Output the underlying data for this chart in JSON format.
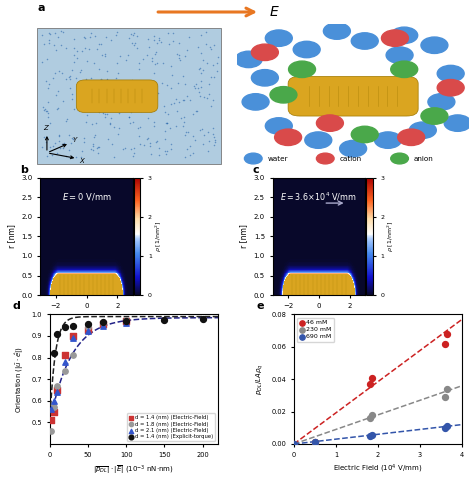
{
  "arrow_color": "#E87722",
  "water_color": "#4A90D9",
  "cation_color": "#D94A4A",
  "anion_color": "#4AA84A",
  "nanorod_color": "#DAA520",
  "nanorod_edge_color": "#A07800",
  "sim_bg_color": "#B0CCE0",
  "colorbar_max": 3.0,
  "colorbar_min": 0.0,
  "orient_d14_ef_x": [
    2,
    5,
    10,
    20,
    30,
    50,
    70,
    100
  ],
  "orient_d14_ef_y": [
    0.51,
    0.55,
    0.65,
    0.81,
    0.9,
    0.93,
    0.955,
    0.97
  ],
  "orient_d18_ef_x": [
    2,
    5,
    10,
    20,
    30,
    50,
    70,
    100
  ],
  "orient_d18_ef_y": [
    0.46,
    0.57,
    0.67,
    0.74,
    0.81,
    0.94,
    0.96,
    0.975
  ],
  "orient_d21_ef_x": [
    2,
    5,
    10,
    20,
    30,
    50,
    70,
    100
  ],
  "orient_d21_ef_y": [
    0.56,
    0.6,
    0.64,
    0.78,
    0.89,
    0.925,
    0.945,
    0.96
  ],
  "orient_d14_et_x": [
    5,
    10,
    20,
    30,
    50,
    70,
    100,
    150,
    200
  ],
  "orient_d14_et_y": [
    0.82,
    0.91,
    0.94,
    0.945,
    0.955,
    0.965,
    0.97,
    0.975,
    0.98
  ],
  "color_d14_ef": "#CC3333",
  "color_d18_ef": "#999999",
  "color_d21_ef": "#3355CC",
  "color_d14_et": "#111111",
  "color_46mM": "#CC2222",
  "color_230mM": "#888888",
  "color_690mM": "#3355AA",
  "pdl_46mM_x": [
    0.0,
    0.5,
    1.8,
    1.85,
    3.6,
    3.65
  ],
  "pdl_46mM_y": [
    0.0,
    0.001,
    0.037,
    0.041,
    0.062,
    0.068
  ],
  "pdl_230mM_x": [
    0.0,
    0.5,
    1.8,
    1.85,
    3.6,
    3.65
  ],
  "pdl_230mM_y": [
    0.0,
    0.001,
    0.016,
    0.018,
    0.029,
    0.034
  ],
  "pdl_690mM_x": [
    0.0,
    0.5,
    1.8,
    1.85,
    3.6,
    3.65
  ],
  "pdl_690mM_y": [
    0.0,
    0.001,
    0.005,
    0.0055,
    0.01,
    0.011
  ],
  "ylim_d": [
    0.4,
    1.0
  ],
  "xlim_d": [
    0,
    220
  ],
  "ylim_e": [
    0,
    0.08
  ],
  "xlim_e": [
    0,
    4
  ],
  "water_positions": [
    [
      0.05,
      0.75
    ],
    [
      0.18,
      0.9
    ],
    [
      0.3,
      0.82
    ],
    [
      0.55,
      0.88
    ],
    [
      0.7,
      0.78
    ],
    [
      0.85,
      0.85
    ],
    [
      0.92,
      0.65
    ],
    [
      0.88,
      0.45
    ],
    [
      0.8,
      0.25
    ],
    [
      0.65,
      0.18
    ],
    [
      0.5,
      0.12
    ],
    [
      0.35,
      0.18
    ],
    [
      0.18,
      0.28
    ],
    [
      0.08,
      0.45
    ],
    [
      0.12,
      0.62
    ],
    [
      0.95,
      0.3
    ],
    [
      0.72,
      0.92
    ],
    [
      0.43,
      0.95
    ]
  ],
  "cation_positions": [
    [
      0.12,
      0.8
    ],
    [
      0.68,
      0.9
    ],
    [
      0.92,
      0.55
    ],
    [
      0.75,
      0.2
    ],
    [
      0.22,
      0.2
    ],
    [
      0.4,
      0.3
    ]
  ],
  "anion_positions": [
    [
      0.28,
      0.68
    ],
    [
      0.72,
      0.68
    ],
    [
      0.55,
      0.22
    ],
    [
      0.2,
      0.5
    ],
    [
      0.85,
      0.35
    ]
  ]
}
